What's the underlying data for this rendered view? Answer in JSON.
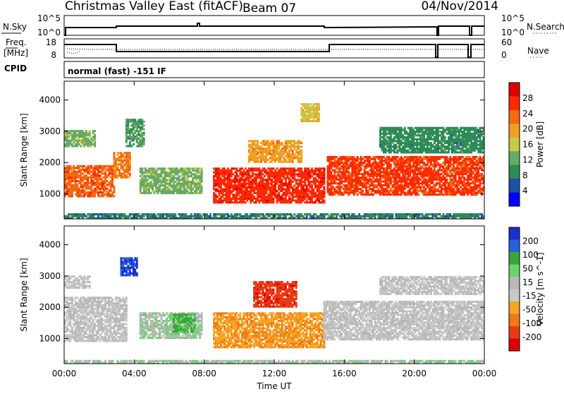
{
  "header": {
    "title": "Christmas Valley East (fitACF)",
    "beam": "Beam 07",
    "date": "04/Nov/2014"
  },
  "panels": {
    "nsky_label": "N.Sky",
    "nsearch_label": "N.Search",
    "freq_label_1": "Freq.",
    "freq_label_2": "[MHz]",
    "nave_label": "Nave",
    "cpid_label": "CPID",
    "cpid_text": "normal (fast) -151 IF",
    "nsky_ticks": [
      "10^5",
      "10^0"
    ],
    "nsearch_ticks": [
      "10^5",
      "10^0"
    ],
    "freq_ticks": [
      "18",
      "8"
    ],
    "nave_ticks": [
      "60",
      "0"
    ]
  },
  "colors": {
    "power_scale": [
      "#0000ff",
      "#1f4fa8",
      "#2e8b57",
      "#66aa66",
      "#c8c84a",
      "#f0a020",
      "#f56a10",
      "#ff2a00",
      "#dd0000"
    ],
    "velocity_scale": [
      "#1a2fcc",
      "#2a60d8",
      "#39a639",
      "#6ed16e",
      "#b8b8b8",
      "#c9c9c9",
      "#f5a623",
      "#f07a1a",
      "#e83a14",
      "#dd0000"
    ]
  },
  "chart_data": [
    {
      "type": "heatmap",
      "name": "power",
      "xlabel": "Time UT",
      "ylabel": "Slant Range [km]",
      "colorbar_label": "Power [dB]",
      "x_ticks": [
        "00:00",
        "04:00",
        "08:00",
        "12:00",
        "16:00",
        "20:00",
        "00:00"
      ],
      "y_ticks": [
        "1000",
        "2000",
        "3000",
        "4000"
      ],
      "ylim": [
        200,
        4600
      ],
      "xlim": [
        0,
        24
      ],
      "colorbar_ticks": [
        "4",
        "8",
        "12",
        "16",
        "20",
        "24",
        "28"
      ],
      "colorbar_range": [
        0,
        32
      ],
      "regions": [
        {
          "t0": 0.0,
          "t1": 2.9,
          "r0": 900,
          "r1": 1900,
          "v": 24
        },
        {
          "t0": 0.0,
          "t1": 1.8,
          "r0": 2500,
          "r1": 3000,
          "v": 13
        },
        {
          "t0": 2.8,
          "t1": 3.8,
          "r0": 1500,
          "r1": 2300,
          "v": 22
        },
        {
          "t0": 3.5,
          "t1": 4.5,
          "r0": 2500,
          "r1": 3400,
          "v": 11
        },
        {
          "t0": 4.3,
          "t1": 7.8,
          "r0": 1000,
          "r1": 1800,
          "v": 13
        },
        {
          "t0": 8.5,
          "t1": 14.8,
          "r0": 700,
          "r1": 1800,
          "v": 27
        },
        {
          "t0": 10.5,
          "t1": 13.5,
          "r0": 2000,
          "r1": 2700,
          "v": 20
        },
        {
          "t0": 13.5,
          "t1": 14.5,
          "r0": 3300,
          "r1": 3900,
          "v": 17
        },
        {
          "t0": 15.0,
          "t1": 24.0,
          "r0": 950,
          "r1": 2200,
          "v": 26
        },
        {
          "t0": 18.0,
          "t1": 24.0,
          "r0": 2300,
          "r1": 3100,
          "v": 9
        },
        {
          "t0": 0.0,
          "t1": 24.0,
          "r0": 200,
          "r1": 380,
          "v": 8
        }
      ]
    },
    {
      "type": "heatmap",
      "name": "velocity",
      "xlabel": "Time UT",
      "ylabel": "Slant Range [km]",
      "colorbar_label": "Velocity [m s^-1]",
      "x_ticks": [
        "00:00",
        "04:00",
        "08:00",
        "12:00",
        "16:00",
        "20:00",
        "00:00"
      ],
      "y_ticks": [
        "1000",
        "2000",
        "3000",
        "4000"
      ],
      "ylim": [
        200,
        4600
      ],
      "xlim": [
        0,
        24
      ],
      "colorbar_ticks": [
        "200",
        "100",
        "50",
        "15",
        "-15",
        "-50",
        "-100",
        "-200"
      ],
      "colorbar_range": [
        -250,
        250
      ],
      "regions": [
        {
          "t0": 0.0,
          "t1": 3.6,
          "r0": 900,
          "r1": 2300,
          "v": 0
        },
        {
          "t0": 0.0,
          "t1": 1.5,
          "r0": 2600,
          "r1": 3000,
          "v": 0
        },
        {
          "t0": 3.2,
          "t1": 4.2,
          "r0": 3000,
          "r1": 3600,
          "v": 200
        },
        {
          "t0": 4.3,
          "t1": 7.8,
          "r0": 1000,
          "r1": 1800,
          "v": 45
        },
        {
          "t0": 6.2,
          "t1": 7.4,
          "r0": 1200,
          "r1": 1800,
          "v": 110
        },
        {
          "t0": 8.5,
          "t1": 14.8,
          "r0": 700,
          "r1": 1800,
          "v": -90
        },
        {
          "t0": 10.8,
          "t1": 13.2,
          "r0": 2000,
          "r1": 2800,
          "v": -180
        },
        {
          "t0": 14.8,
          "t1": 24.0,
          "r0": 950,
          "r1": 2200,
          "v": 0
        },
        {
          "t0": 18.0,
          "t1": 24.0,
          "r0": 2400,
          "r1": 3000,
          "v": 0
        },
        {
          "t0": 0.0,
          "t1": 24.0,
          "r0": 200,
          "r1": 320,
          "v": 40
        }
      ]
    }
  ]
}
